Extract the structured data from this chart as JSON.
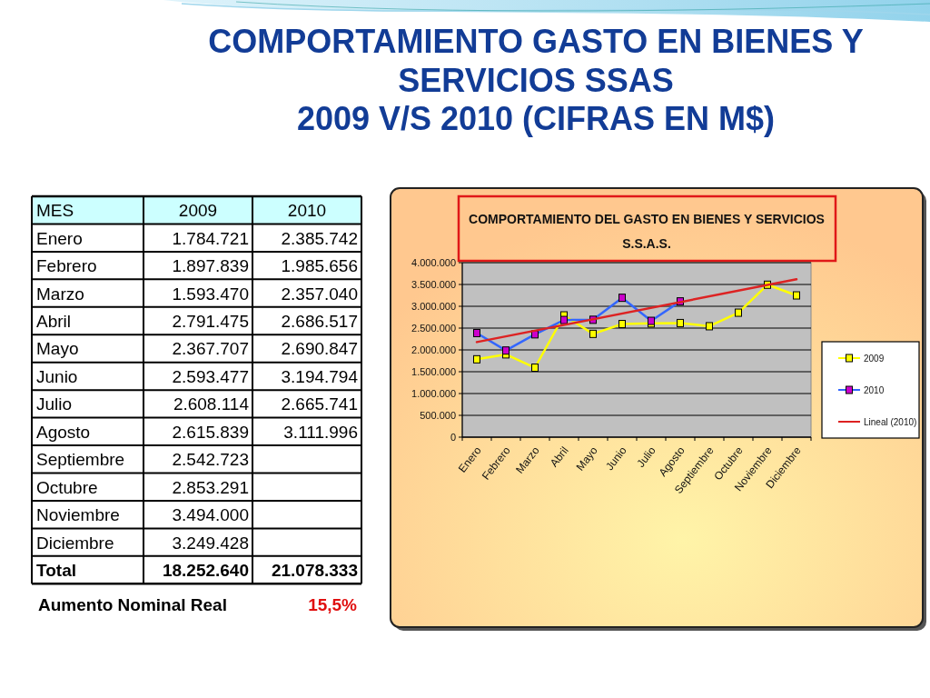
{
  "chart_data": [
    {
      "type": "other",
      "title": "COMPORTAMIENTO GASTO EN BIENES Y\nSERVICIOS SSAS\n2009 V/S 2010 (CIFRAS EN M$)",
      "categories": [
        "2009",
        "2010"
      ],
      "y_categories": [
        "Enero",
        "Febrero",
        "Marzo",
        "Abril",
        "Mayo",
        "Junio",
        "Julio",
        "Agosto",
        "Septiembre",
        "Octubre",
        "Noviembre",
        "Diciembre",
        "Total"
      ],
      "cell_labels": [
        [
          "1.784.721",
          "2.385.742"
        ],
        [
          "1.897.839",
          "1.985.656"
        ],
        [
          "1.593.470",
          "2.357.040"
        ],
        [
          "2.791.475",
          "2.686.517"
        ],
        [
          "2.367.707",
          "2.690.847"
        ],
        [
          "2.593.477",
          "3.194.794"
        ],
        [
          "2.608.114",
          "2.665.741"
        ],
        [
          "2.615.839",
          "3.111.996"
        ],
        [
          "2.542.723",
          null
        ],
        [
          "2.853.291",
          null
        ],
        [
          "3.494.000",
          null
        ],
        [
          "3.249.428",
          null
        ],
        [
          "18.252.640",
          "21.078.333"
        ]
      ],
      "annotations": [
        "MES",
        "Aumento Nominal Real",
        "15,5%"
      ]
    },
    {
      "type": "line",
      "title": "COMPORTAMIENTO DEL GASTO EN BIENES Y SERVICIOS\nS.S.A.S.",
      "categories": [
        "Enero",
        "Febrero",
        "Marzo",
        "Abril",
        "Mayo",
        "Junio",
        "Julio",
        "Agosto",
        "Septiembre",
        "Octubre",
        "Noviembre",
        "Diciembre"
      ],
      "series": [
        {
          "name": "2009",
          "color": "#ffff00",
          "values": [
            1784721,
            1897839,
            1593470,
            2791475,
            2367707,
            2593477,
            2608114,
            2615839,
            2542723,
            2853291,
            3494000,
            3249428
          ]
        },
        {
          "name": "2010",
          "color": "#3366ff",
          "colors": [
            "#cc00cc",
            "#cc00cc",
            "#cc00cc",
            "#cc00cc",
            "#cc00cc",
            "#cc00cc",
            "#cc00cc",
            "#cc00cc",
            null,
            null,
            null,
            null
          ],
          "values": [
            2385742,
            1985656,
            2357040,
            2686517,
            2690847,
            3194794,
            2665741,
            3111996,
            null,
            null,
            null,
            null
          ]
        },
        {
          "name": "Lineal (2010)",
          "type": "line",
          "color": "#dd2222",
          "marker": "none",
          "x": [
            "Enero",
            "Diciembre"
          ],
          "values": [
            2180000,
            3620000
          ]
        }
      ],
      "ylim": [
        0,
        4000000
      ],
      "yticks": [
        0,
        {
          "value": 500000,
          "label": "500.000"
        },
        {
          "value": 1000000,
          "label": "1.000.000"
        },
        {
          "value": 1500000,
          "label": "1.500.000"
        },
        {
          "value": 2000000,
          "label": "2.000.000"
        },
        {
          "value": 2500000,
          "label": "2.500.000"
        },
        {
          "value": 3000000,
          "label": "3.000.000"
        },
        {
          "value": 3500000,
          "label": "3.500.000"
        },
        {
          "value": 4000000,
          "label": "4.000.000"
        }
      ],
      "grid": "y",
      "legend": "right",
      "marker": "square"
    }
  ]
}
